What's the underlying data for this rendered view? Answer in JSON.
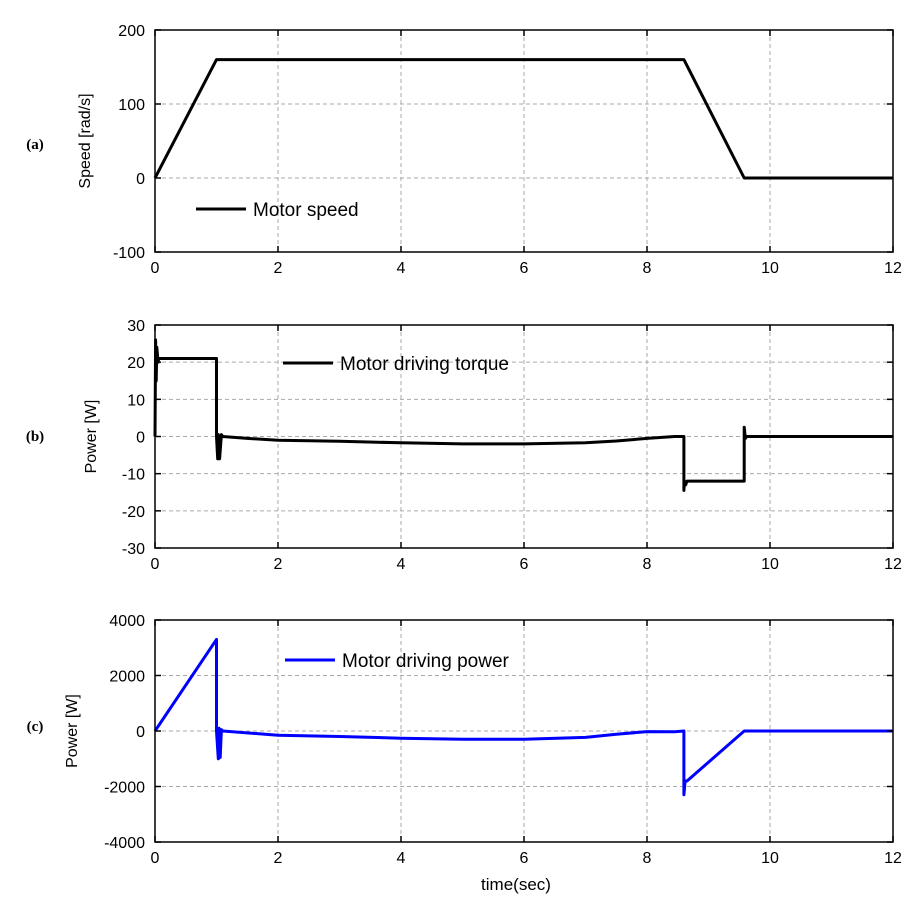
{
  "chart_data": [
    {
      "type": "line",
      "panel_label": "(a)",
      "title": "",
      "xlabel": "",
      "ylabel": "Speed [rad/s]",
      "xlim": [
        0,
        12
      ],
      "ylim": [
        -100,
        200
      ],
      "xticks": [
        0,
        2,
        4,
        6,
        8,
        10,
        12
      ],
      "yticks": [
        -100,
        0,
        100,
        200
      ],
      "xtick_labels": [
        "0",
        "2",
        "4",
        "6",
        "8",
        "10",
        "12"
      ],
      "ytick_labels": [
        "-100",
        "0",
        "100",
        "200"
      ],
      "grid": true,
      "legend_position": "lower-left",
      "series": [
        {
          "name": "Motor speed",
          "color": "#000000",
          "x": [
            0,
            1.0,
            8.6,
            9.58,
            12
          ],
          "y": [
            0,
            160,
            160,
            0,
            0
          ]
        }
      ]
    },
    {
      "type": "line",
      "panel_label": "(b)",
      "title": "",
      "xlabel": "",
      "ylabel": "Power [W]",
      "xlim": [
        0,
        12
      ],
      "ylim": [
        -30,
        30
      ],
      "xticks": [
        0,
        2,
        4,
        6,
        8,
        10,
        12
      ],
      "yticks": [
        -30,
        -20,
        -10,
        0,
        10,
        20,
        30
      ],
      "xtick_labels": [
        "0",
        "2",
        "4",
        "6",
        "8",
        "10",
        "12"
      ],
      "ytick_labels": [
        "-30",
        "-20",
        "-10",
        "0",
        "10",
        "20",
        "30"
      ],
      "grid": true,
      "legend_position": "top-center",
      "series": [
        {
          "name": "Motor driving torque",
          "color": "#000000",
          "x": [
            0,
            0.01,
            0.02,
            0.03,
            0.05,
            0.06,
            0.1,
            1.0,
            1.0,
            1.02,
            1.03,
            1.05,
            1.08,
            1.1,
            1.5,
            2.0,
            3.0,
            4.0,
            5.0,
            6.0,
            7.0,
            7.5,
            8.0,
            8.45,
            8.6,
            8.6,
            8.61,
            8.63,
            8.65,
            9.58,
            9.58,
            9.6,
            9.62,
            12
          ],
          "y": [
            0,
            26,
            15,
            24,
            20,
            21,
            21,
            21,
            0,
            -6,
            0.5,
            -6,
            0.5,
            0,
            -0.5,
            -1,
            -1.3,
            -1.7,
            -2,
            -2,
            -1.7,
            -1.2,
            -0.5,
            0,
            0,
            -14.5,
            -12,
            -13,
            -12,
            -12,
            2.5,
            -0.5,
            0,
            0
          ]
        }
      ]
    },
    {
      "type": "line",
      "panel_label": "(c)",
      "title": "",
      "xlabel": "time(sec)",
      "ylabel": "Power [W]",
      "xlim": [
        0,
        12
      ],
      "ylim": [
        -4000,
        4000
      ],
      "xticks": [
        0,
        2,
        4,
        6,
        8,
        10,
        12
      ],
      "yticks": [
        -4000,
        -2000,
        0,
        2000,
        4000
      ],
      "xtick_labels": [
        "0",
        "2",
        "4",
        "6",
        "8",
        "10",
        "12"
      ],
      "ytick_labels": [
        "-4000",
        "-2000",
        "0",
        "2000",
        "4000"
      ],
      "grid": true,
      "legend_position": "top-center",
      "series": [
        {
          "name": "Motor driving power",
          "color": "#0000ff",
          "x": [
            0,
            1.0,
            1.0,
            1.03,
            1.04,
            1.06,
            1.08,
            1.1,
            2.0,
            3.0,
            4.0,
            5.0,
            6.0,
            7.0,
            7.5,
            8.0,
            8.45,
            8.6,
            8.6,
            8.62,
            8.65,
            9.58,
            9.6,
            12
          ],
          "y": [
            0,
            3300,
            0,
            -1000,
            100,
            -950,
            50,
            0,
            -150,
            -200,
            -260,
            -300,
            -300,
            -230,
            -120,
            -20,
            -30,
            0,
            -2300,
            -1800,
            -1800,
            0,
            0,
            0
          ]
        }
      ]
    }
  ]
}
